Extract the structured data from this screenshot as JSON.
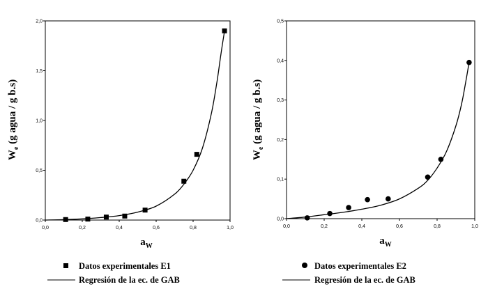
{
  "chart_data": [
    {
      "type": "scatter",
      "title": "",
      "xlabel": "a_w",
      "ylabel": "W_e (g agua / g b.s)",
      "xlim": [
        0.0,
        1.0
      ],
      "ylim": [
        0.0,
        2.0
      ],
      "x_ticks": [
        "0,0",
        "0,2",
        "0,4",
        "0,6",
        "0,8",
        "1,0"
      ],
      "y_ticks": [
        "0,0",
        "0,5",
        "1,0",
        "1,5",
        "2,0"
      ],
      "grid": false,
      "legend_position": "bottom",
      "series": [
        {
          "name": "Datos experimentales E1",
          "marker": "square",
          "x": [
            0.11,
            0.23,
            0.33,
            0.43,
            0.54,
            0.75,
            0.82,
            0.97
          ],
          "y": [
            0.005,
            0.01,
            0.03,
            0.04,
            0.1,
            0.39,
            0.66,
            1.9
          ]
        },
        {
          "name": "Regresión de la ec. de GAB",
          "marker": "line",
          "x": [
            0.0,
            0.1,
            0.2,
            0.3,
            0.4,
            0.5,
            0.6,
            0.7,
            0.75,
            0.8,
            0.85,
            0.9,
            0.93,
            0.95,
            0.97
          ],
          "y": [
            0.0,
            0.004,
            0.012,
            0.025,
            0.045,
            0.08,
            0.14,
            0.26,
            0.36,
            0.5,
            0.72,
            1.08,
            1.4,
            1.66,
            1.9
          ]
        }
      ]
    },
    {
      "type": "scatter",
      "title": "",
      "xlabel": "a_w",
      "ylabel": "W_e (g agua / g b.s)",
      "xlim": [
        0.0,
        1.0
      ],
      "ylim": [
        0.0,
        0.5
      ],
      "x_ticks": [
        "0,0",
        "0,2",
        "0,4",
        "0,6",
        "0,8",
        "1,0"
      ],
      "y_ticks": [
        "0,0",
        "0,1",
        "0,2",
        "0,3",
        "0,4",
        "0,5"
      ],
      "grid": false,
      "legend_position": "bottom",
      "series": [
        {
          "name": "Datos experimentales E2",
          "marker": "circle",
          "x": [
            0.11,
            0.23,
            0.33,
            0.43,
            0.54,
            0.75,
            0.82,
            0.97
          ],
          "y": [
            0.002,
            0.013,
            0.028,
            0.048,
            0.05,
            0.105,
            0.15,
            0.395
          ]
        },
        {
          "name": "Regresión de la ec. de GAB",
          "marker": "line",
          "x": [
            0.0,
            0.1,
            0.2,
            0.3,
            0.4,
            0.5,
            0.6,
            0.7,
            0.75,
            0.8,
            0.85,
            0.9,
            0.93,
            0.95,
            0.97
          ],
          "y": [
            0.0,
            0.004,
            0.01,
            0.016,
            0.024,
            0.034,
            0.05,
            0.077,
            0.097,
            0.128,
            0.17,
            0.235,
            0.29,
            0.34,
            0.395
          ]
        }
      ]
    }
  ]
}
